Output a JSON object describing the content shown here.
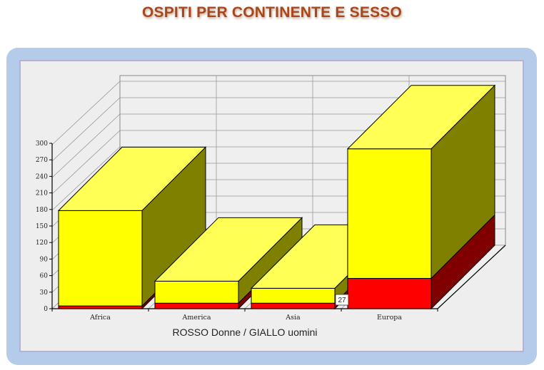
{
  "title": "OSPITI PER CONTINENTE E SESSO",
  "chart_data": {
    "type": "bar",
    "stacked": true,
    "three_d": true,
    "categories": [
      "Africa",
      "America",
      "Asia",
      "Europa"
    ],
    "series": [
      {
        "name": "Donne",
        "color": "#ff0000",
        "top_color": "#ff3030",
        "side_color": "#800000",
        "values": [
          5,
          10,
          10,
          55
        ]
      },
      {
        "name": "uomini",
        "color": "#ffff00",
        "top_color": "#ffff55",
        "side_color": "#808000",
        "values": [
          173,
          40,
          27,
          235
        ]
      }
    ],
    "ylim": [
      0,
      300
    ],
    "yticks": [
      0,
      30,
      60,
      90,
      120,
      150,
      180,
      210,
      240,
      270,
      300
    ],
    "grid": true,
    "legend_text": "ROSSO Donne / GIALLO uomini",
    "annotation": {
      "category": "Asia",
      "text": "27"
    }
  }
}
